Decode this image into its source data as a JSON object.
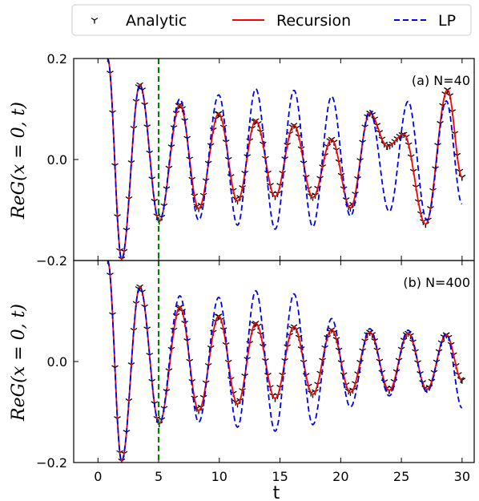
{
  "legend": {
    "placement": "top",
    "entries": [
      {
        "label": "Analytic",
        "style": "tri-marker",
        "color": "#000000"
      },
      {
        "label": "Recursion",
        "style": "solid",
        "color": "#ff0000"
      },
      {
        "label": "LP",
        "style": "dashed",
        "color": "#0000ee"
      }
    ]
  },
  "chart_data": [
    {
      "type": "line",
      "panel_label": "(a) N=40",
      "xlabel": "",
      "ylabel": "ReG(x = 0, t)",
      "xlim": [
        -2,
        31
      ],
      "ylim": [
        -0.2,
        0.2
      ],
      "yticks": [
        "−0.2",
        "0.0",
        "0.2"
      ],
      "ytick_values": [
        -0.2,
        0.0,
        0.2
      ],
      "vline": {
        "x": 5,
        "color": "#008000",
        "style": "dashed"
      },
      "series": [
        {
          "name": "Analytic",
          "color": "#000000",
          "x": [
            0.8,
            1.95,
            3.45,
            5.05,
            6.75,
            8.3,
            9.95,
            11.5,
            13.0,
            14.6,
            16.15,
            17.7,
            19.25,
            20.8,
            22.4,
            23.85,
            25.2,
            27.0,
            28.8,
            30.0
          ],
          "y": [
            0.2,
            -0.197,
            0.148,
            -0.122,
            0.109,
            -0.097,
            0.091,
            -0.082,
            0.077,
            -0.073,
            0.068,
            -0.075,
            0.04,
            -0.096,
            0.092,
            0.026,
            0.05,
            -0.128,
            0.138,
            -0.035
          ]
        },
        {
          "name": "Recursion",
          "color": "#ff0000",
          "x": [
            0.8,
            1.95,
            3.45,
            5.05,
            6.75,
            8.3,
            9.95,
            11.5,
            13.0,
            14.6,
            16.15,
            17.7,
            19.25,
            20.8,
            22.4,
            23.85,
            25.2,
            27.0,
            28.8,
            30.0
          ],
          "y": [
            0.2,
            -0.197,
            0.148,
            -0.122,
            0.109,
            -0.097,
            0.091,
            -0.082,
            0.077,
            -0.073,
            0.068,
            -0.075,
            0.04,
            -0.096,
            0.092,
            0.026,
            0.05,
            -0.128,
            0.138,
            -0.035
          ]
        },
        {
          "name": "LP",
          "color": "#0000ee",
          "x": [
            0.8,
            1.95,
            3.45,
            5.05,
            6.75,
            8.3,
            9.95,
            11.5,
            13.0,
            14.6,
            16.15,
            17.7,
            19.25,
            20.8,
            22.4,
            24.0,
            25.55,
            27.1,
            28.7,
            30.0
          ],
          "y": [
            0.2,
            -0.197,
            0.148,
            -0.122,
            0.12,
            -0.12,
            0.128,
            -0.13,
            0.14,
            -0.138,
            0.137,
            -0.133,
            0.125,
            -0.112,
            0.097,
            -0.103,
            0.115,
            -0.12,
            0.116,
            -0.088
          ]
        }
      ]
    },
    {
      "type": "line",
      "panel_label": "(b) N=400",
      "xlabel": "t",
      "ylabel": "ReG(x = 0, t)",
      "xlim": [
        -2,
        31
      ],
      "ylim": [
        -0.2,
        0.2
      ],
      "xticks": [
        "0",
        "5",
        "10",
        "15",
        "20",
        "25",
        "30"
      ],
      "xtick_values": [
        0,
        5,
        10,
        15,
        20,
        25,
        30
      ],
      "yticks": [
        "−0.2",
        "0.0"
      ],
      "ytick_values": [
        -0.2,
        0.0
      ],
      "vline": {
        "x": 5,
        "color": "#008000",
        "style": "dashed"
      },
      "series": [
        {
          "name": "Analytic",
          "color": "#000000",
          "x": [
            0.8,
            1.95,
            3.45,
            5.05,
            6.75,
            8.3,
            9.95,
            11.5,
            13.0,
            14.6,
            16.15,
            17.7,
            19.25,
            20.8,
            22.4,
            24.0,
            25.55,
            27.1,
            28.7,
            30.0
          ],
          "y": [
            0.2,
            -0.197,
            0.148,
            -0.123,
            0.108,
            -0.097,
            0.09,
            -0.084,
            0.076,
            -0.073,
            0.069,
            -0.065,
            0.063,
            -0.061,
            0.058,
            -0.057,
            0.056,
            -0.055,
            0.053,
            -0.037
          ]
        },
        {
          "name": "Recursion",
          "color": "#ff0000",
          "x": [
            0.8,
            1.95,
            3.45,
            5.05,
            6.75,
            8.3,
            9.95,
            11.5,
            13.0,
            14.6,
            16.15,
            17.7,
            19.25,
            20.8,
            22.4,
            24.0,
            25.55,
            27.1,
            28.7,
            30.0
          ],
          "y": [
            0.2,
            -0.197,
            0.148,
            -0.123,
            0.108,
            -0.097,
            0.09,
            -0.084,
            0.076,
            -0.073,
            0.069,
            -0.065,
            0.063,
            -0.061,
            0.058,
            -0.057,
            0.056,
            -0.055,
            0.053,
            -0.037
          ]
        },
        {
          "name": "LP",
          "color": "#0000ee",
          "x": [
            0.8,
            1.95,
            3.45,
            5.05,
            6.75,
            8.3,
            9.95,
            11.5,
            13.0,
            14.6,
            16.15,
            17.7,
            19.25,
            20.8,
            22.4,
            24.0,
            25.55,
            27.1,
            28.7,
            30.0
          ],
          "y": [
            0.2,
            -0.197,
            0.148,
            -0.123,
            0.13,
            -0.12,
            0.127,
            -0.13,
            0.14,
            -0.138,
            0.134,
            -0.125,
            0.085,
            -0.09,
            0.065,
            -0.068,
            0.062,
            -0.06,
            0.055,
            -0.092
          ]
        }
      ]
    }
  ]
}
